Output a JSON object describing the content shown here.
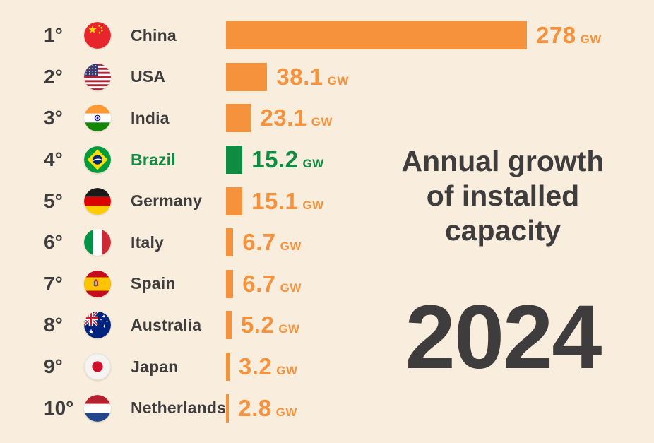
{
  "colors": {
    "background": "#f9eedd",
    "bar_orange": "#f6913c",
    "bar_green": "#0e8c42",
    "text_dark": "#3e3c3d"
  },
  "title_lines": [
    "Annual growth",
    "of installed",
    "capacity"
  ],
  "year": "2024",
  "chart_data": {
    "type": "bar",
    "orientation": "horizontal",
    "title": "Annual growth of installed capacity",
    "subtitle": "2024",
    "unit": "GW",
    "ranks": [
      "1°",
      "2°",
      "3°",
      "4°",
      "5°",
      "6°",
      "7°",
      "8°",
      "9°",
      "10°"
    ],
    "categories": [
      "China",
      "USA",
      "India",
      "Brazil",
      "Germany",
      "Italy",
      "Spain",
      "Australia",
      "Japan",
      "Netherlands"
    ],
    "values": [
      278,
      38.1,
      23.1,
      15.2,
      15.1,
      6.7,
      6.7,
      5.2,
      3.2,
      2.8
    ],
    "value_labels": [
      "278",
      "38.1",
      "23.1",
      "15.2",
      "15.1",
      "6.7",
      "6.7",
      "5.2",
      "3.2",
      "2.8"
    ],
    "highlight_country": "Brazil",
    "xlim": [
      0,
      278
    ],
    "legend": "none",
    "grid": false
  }
}
